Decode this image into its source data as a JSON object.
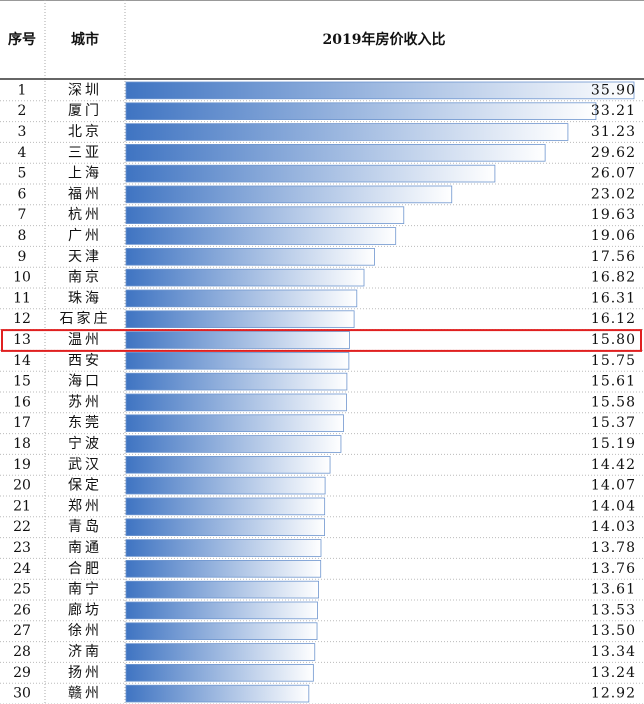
{
  "chart_data": {
    "type": "bar",
    "headers": [
      "序号",
      "城市",
      "2019年房价收入比"
    ],
    "ranks": [
      1,
      2,
      3,
      4,
      5,
      6,
      7,
      8,
      9,
      10,
      11,
      12,
      13,
      14,
      15,
      16,
      17,
      18,
      19,
      20,
      21,
      22,
      23,
      24,
      25,
      26,
      27,
      28,
      29,
      30
    ],
    "categories": [
      "深圳",
      "厦门",
      "北京",
      "三亚",
      "上海",
      "福州",
      "杭州",
      "广州",
      "天津",
      "南京",
      "珠海",
      "石家庄",
      "温州",
      "西安",
      "海口",
      "苏州",
      "东莞",
      "宁波",
      "武汉",
      "保定",
      "郑州",
      "青岛",
      "南通",
      "合肥",
      "南宁",
      "廊坊",
      "徐州",
      "济南",
      "扬州",
      "赣州"
    ],
    "values": [
      35.9,
      33.21,
      31.23,
      29.62,
      26.07,
      23.02,
      19.63,
      19.06,
      17.56,
      16.82,
      16.31,
      16.12,
      15.8,
      15.75,
      15.61,
      15.58,
      15.37,
      15.19,
      14.42,
      14.07,
      14.04,
      14.03,
      13.78,
      13.76,
      13.61,
      13.53,
      13.5,
      13.34,
      13.24,
      12.92
    ],
    "value_labels": [
      "35.90",
      "33.21",
      "31.23",
      "29.62",
      "26.07",
      "23.02",
      "19.63",
      "19.06",
      "17.56",
      "16.82",
      "16.31",
      "16.12",
      "15.80",
      "15.75",
      "15.61",
      "15.58",
      "15.37",
      "15.19",
      "14.42",
      "14.07",
      "14.04",
      "14.03",
      "13.78",
      "13.76",
      "13.61",
      "13.53",
      "13.50",
      "13.34",
      "13.24",
      "12.92"
    ],
    "color": "#3f74c2",
    "highlight": 13
  }
}
